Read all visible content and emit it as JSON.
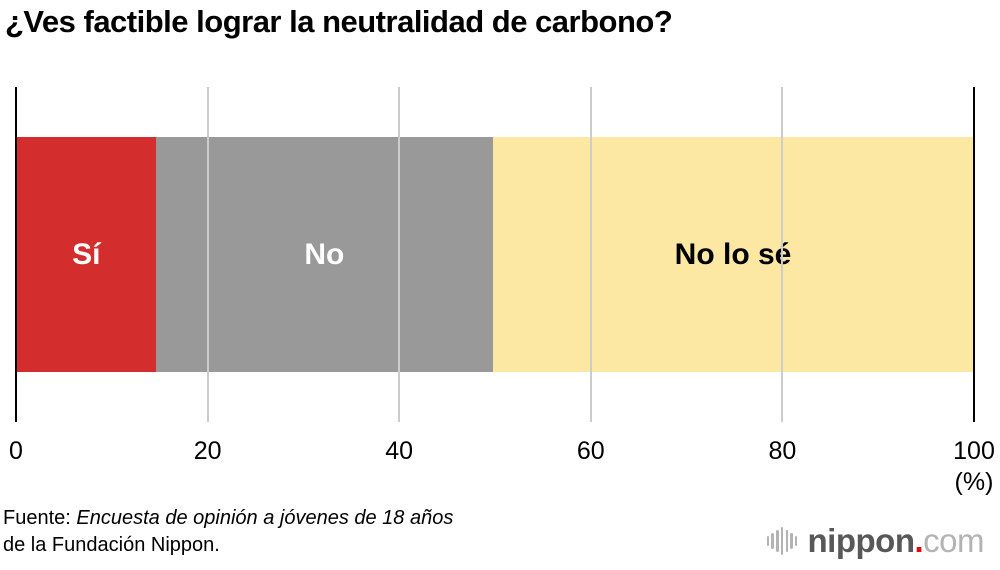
{
  "title": "¿Ves factible lograr la neutralidad de carbono?",
  "chart_data": {
    "type": "bar",
    "subtype": "horizontal-stacked-single-bar",
    "title": "¿Ves factible lograr la neutralidad de carbono?",
    "unit": "(%)",
    "xlim": [
      0,
      100
    ],
    "x_ticks": [
      0,
      20,
      40,
      60,
      80,
      100
    ],
    "grid": true,
    "gridline_color": "#cccccc",
    "axis_edge_color": "#000000",
    "segments": [
      {
        "label": "Sí",
        "value": 14.5,
        "color": "#d32d2d",
        "text_color": "#ffffff"
      },
      {
        "label": "No",
        "value": 35.3,
        "color": "#999999",
        "text_color": "#ffffff"
      },
      {
        "label": "No lo sé",
        "value": 50.2,
        "color": "#fce8a3",
        "text_color": "#000000"
      }
    ]
  },
  "source": {
    "prefix": "Fuente: ",
    "survey_name_italic": "Encuesta de opinión a jóvenes de 18 años",
    "line2": "de la Fundación Nippon."
  },
  "logo": {
    "icon": "waveform-icon",
    "brand": "nippon",
    "dot": ".",
    "tld": "com",
    "wave_bar_heights": [
      10,
      16,
      22,
      28,
      22,
      16,
      10
    ]
  }
}
